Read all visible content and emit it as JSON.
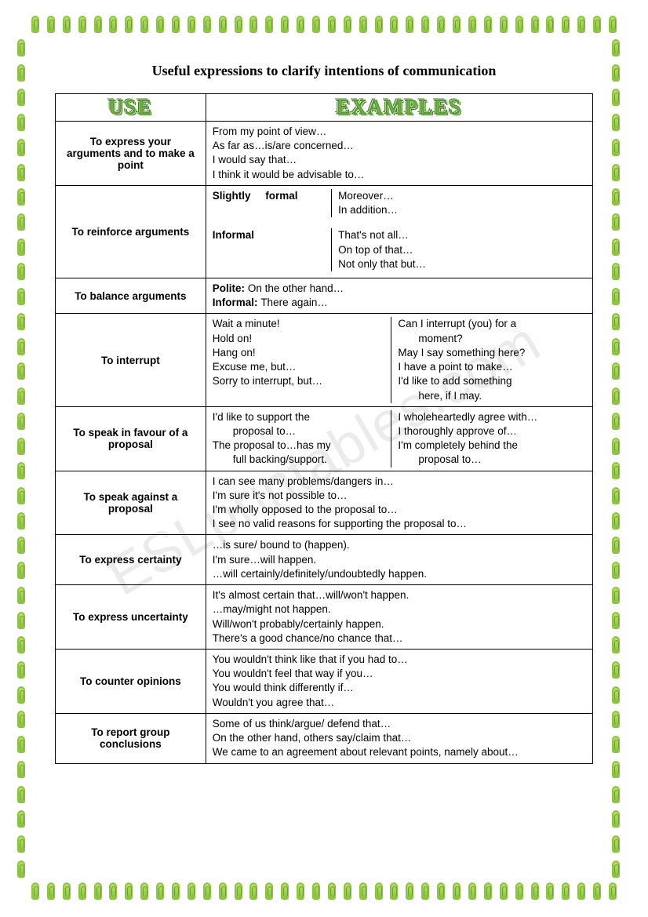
{
  "title": "Useful expressions to clarify intentions of communication",
  "watermark": "ESLprintables.com",
  "headers": {
    "use": "USE",
    "examples": "EXAMPLES"
  },
  "rows": [
    {
      "use": "To express your arguments and to make a point",
      "examples_lines": [
        "From my point of view…",
        "As far as…is/are concerned…",
        "I would say that…",
        "I think it would be advisable to…"
      ]
    },
    {
      "use": "To reinforce arguments",
      "sub": [
        {
          "label": "Slightly formal",
          "values": [
            "Moreover…",
            "In addition…"
          ]
        },
        {
          "label": "Informal",
          "values": [
            "That's not all…",
            "On top of that…",
            "Not only that but…"
          ]
        }
      ]
    },
    {
      "use": "To balance arguments",
      "inline": [
        {
          "label": "Polite:",
          "value": "On the other hand…"
        },
        {
          "label": "Informal:",
          "value": "There again…"
        }
      ]
    },
    {
      "use": "To interrupt",
      "two_col": {
        "left": [
          "Wait a minute!",
          "Hold on!",
          "Hang on!",
          "Excuse me, but…",
          "Sorry to interrupt, but…"
        ],
        "right": [
          "Can I interrupt (you) for a",
          "    moment?",
          "May I say something here?",
          "I have a point to make…",
          "I'd like to add something",
          "    here, if I may."
        ]
      }
    },
    {
      "use": "To speak in favour of a proposal",
      "two_col": {
        "left": [
          "I'd like to support the",
          "    proposal to…",
          "The proposal to…has my",
          "    full backing/support."
        ],
        "right": [
          "I wholeheartedly agree with…",
          "I thoroughly approve of…",
          "I'm completely behind the",
          "    proposal to…"
        ]
      }
    },
    {
      "use": "To speak against a proposal",
      "examples_lines": [
        "I can see many problems/dangers in…",
        "I'm sure it's not possible to…",
        "I'm wholly opposed to the proposal to…",
        "I see no valid reasons for supporting the proposal to…"
      ]
    },
    {
      "use": "To express certainty",
      "examples_lines": [
        "…is sure/ bound to (happen).",
        "I'm sure…will happen.",
        "…will certainly/definitely/undoubtedly happen."
      ]
    },
    {
      "use": "To express uncertainty",
      "examples_lines": [
        "It's almost certain that…will/won't happen.",
        "…may/might not happen.",
        "Will/won't probably/certainly happen.",
        "There's a good chance/no chance that…"
      ]
    },
    {
      "use": "To counter opinions",
      "examples_lines": [
        "You wouldn't think like that if you had to…",
        "You wouldn't feel that way if you…",
        "You would think differently if…",
        "Wouldn't you agree that…"
      ]
    },
    {
      "use": "To report group conclusions",
      "examples_lines": [
        "Some of us think/argue/ defend that…",
        "On the other hand, others say/claim that…",
        "We came to an agreement about relevant points, namely about…"
      ]
    }
  ],
  "colors": {
    "clip_green": "#8bc53f",
    "header_green": "#6db33f",
    "black": "#000000",
    "white": "#ffffff"
  }
}
